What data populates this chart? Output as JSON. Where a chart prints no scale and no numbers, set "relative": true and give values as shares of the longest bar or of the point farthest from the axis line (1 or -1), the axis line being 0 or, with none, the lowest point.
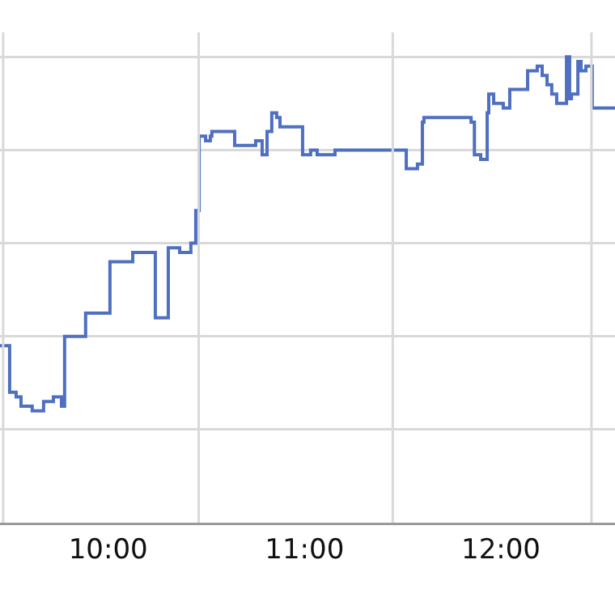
{
  "chart_data": {
    "type": "step",
    "relative": true,
    "grid": true,
    "color": "#4f6fc0",
    "x": [
      9.449,
      9.498,
      9.531,
      9.556,
      9.613,
      9.671,
      9.721,
      9.762,
      9.778,
      9.885,
      10.009,
      10.125,
      10.24,
      10.306,
      10.364,
      10.421,
      10.446,
      10.463,
      10.496,
      10.52,
      10.528,
      10.644,
      10.751,
      10.784,
      10.809,
      10.833,
      10.858,
      10.875,
      10.99,
      11.031,
      11.064,
      11.155,
      11.518,
      11.575,
      11.6,
      11.608,
      11.848,
      11.865,
      11.897,
      11.93,
      11.938,
      11.963,
      12.012,
      12.045,
      12.136,
      12.185,
      12.21,
      12.235,
      12.259,
      12.284,
      12.334,
      12.35,
      12.359,
      12.392,
      12.408,
      12.433,
      12.465,
      12.581
    ],
    "values": [
      0.38,
      0.28,
      0.27,
      0.25,
      0.24,
      0.26,
      0.27,
      0.25,
      0.4,
      0.45,
      0.56,
      0.58,
      0.44,
      0.59,
      0.58,
      0.6,
      0.67,
      0.83,
      0.82,
      0.83,
      0.84,
      0.81,
      0.82,
      0.79,
      0.84,
      0.88,
      0.87,
      0.85,
      0.79,
      0.8,
      0.79,
      0.8,
      0.76,
      0.77,
      0.86,
      0.87,
      0.86,
      0.79,
      0.78,
      0.88,
      0.92,
      0.9,
      0.89,
      0.93,
      0.97,
      0.98,
      0.96,
      0.94,
      0.92,
      0.9,
      1.0,
      0.91,
      0.92,
      0.99,
      0.97,
      0.98,
      0.89,
      0.89
    ],
    "xlim": [
      9.449,
      12.581
    ],
    "xticks": [
      {
        "value": 9.465,
        "label": null
      },
      {
        "value": 10,
        "label": "10:00"
      },
      {
        "value": 10.461,
        "label": null
      },
      {
        "value": 11,
        "label": "11:00"
      },
      {
        "value": 11.449,
        "label": null
      },
      {
        "value": 12,
        "label": "12:00"
      },
      {
        "value": 12.461,
        "label": null
      }
    ]
  }
}
